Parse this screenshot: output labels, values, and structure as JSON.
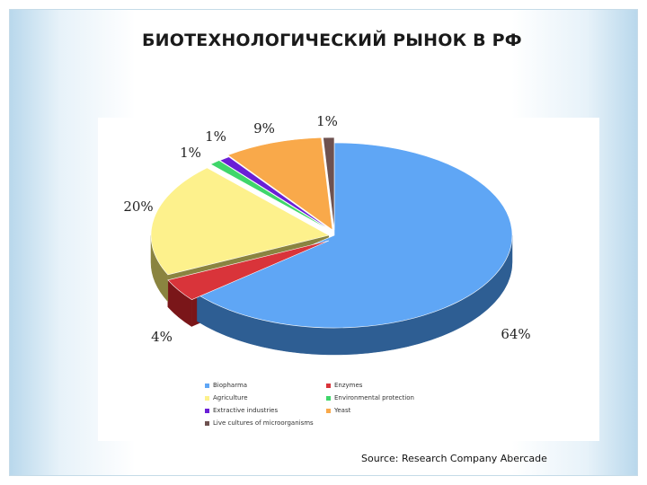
{
  "slide": {
    "title": "БИОТЕХНОЛОГИЧЕСКИЙ РЫНОК В РФ",
    "source": "Source: Research Company Abercade"
  },
  "chart_data": {
    "type": "pie",
    "style": "3d-exploded",
    "slices": [
      {
        "name": "Biopharma",
        "value": 64,
        "label": "64%",
        "color": "#5fa6f5",
        "side_color": "#2e5e93"
      },
      {
        "name": "Enzymes",
        "value": 4,
        "label": "4%",
        "color": "#d9343a",
        "side_color": "#7a1619"
      },
      {
        "name": "Agriculture",
        "value": 20,
        "label": "20%",
        "color": "#fdf18c",
        "side_color": "#8a8440"
      },
      {
        "name": "Environmental protection",
        "value": 1,
        "label": "1%",
        "color": "#3fd66a",
        "side_color": "#1e7a38"
      },
      {
        "name": "Extractive industries",
        "value": 1,
        "label": "1%",
        "color": "#6a1fd6",
        "side_color": "#3a0f7a"
      },
      {
        "name": "Yeast",
        "value": 9,
        "label": "9%",
        "color": "#f9a94a",
        "side_color": "#9a6222"
      },
      {
        "name": "Live cultures of microorganisms",
        "value": 1,
        "label": "1%",
        "color": "#6e5250",
        "side_color": "#3e2c2b"
      }
    ],
    "legend_position": "bottom"
  }
}
